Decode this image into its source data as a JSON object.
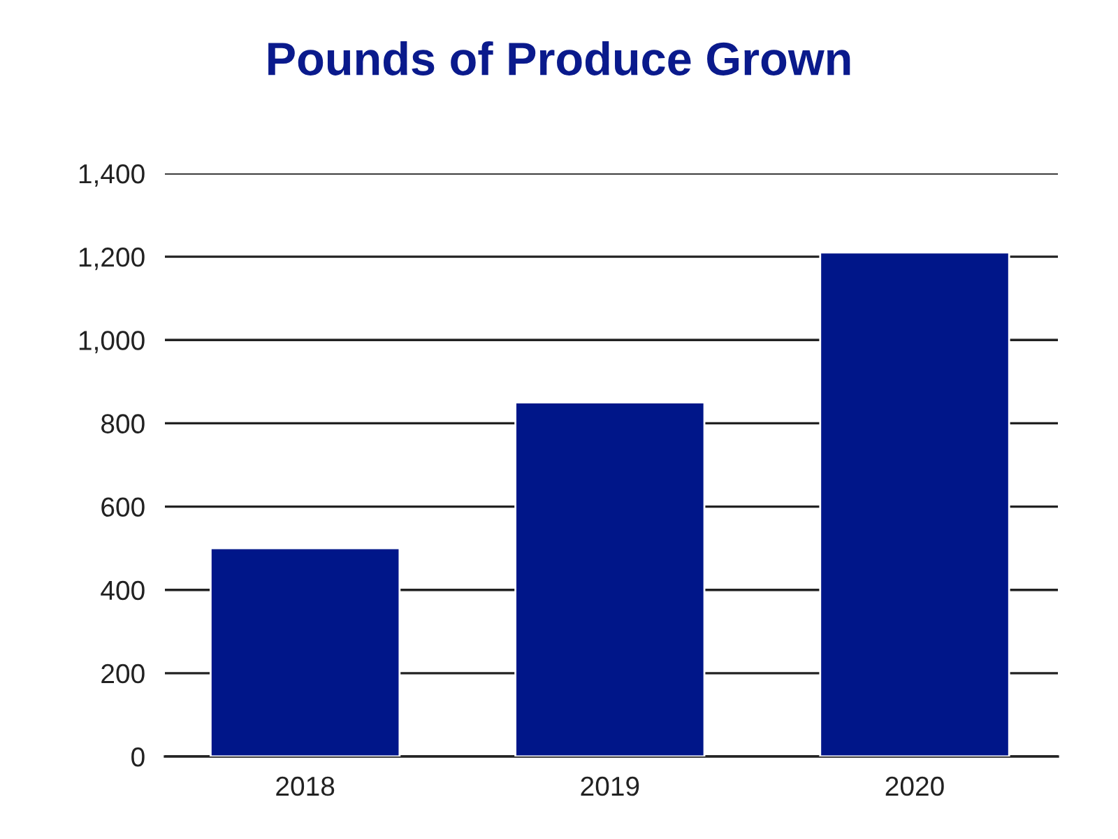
{
  "chart_data": {
    "type": "bar",
    "title": "Pounds of Produce Grown",
    "categories": [
      "2018",
      "2019",
      "2020"
    ],
    "values": [
      500,
      850,
      1210
    ],
    "color": "#001689",
    "ylim": [
      0,
      1400
    ],
    "yticks": [
      0,
      200,
      400,
      600,
      800,
      {
        "value": 1000,
        "label": "1,000"
      },
      {
        "value": 1200,
        "label": "1,200"
      },
      {
        "value": 1400,
        "label": "1,400"
      }
    ],
    "grid": "y",
    "legend": false
  }
}
